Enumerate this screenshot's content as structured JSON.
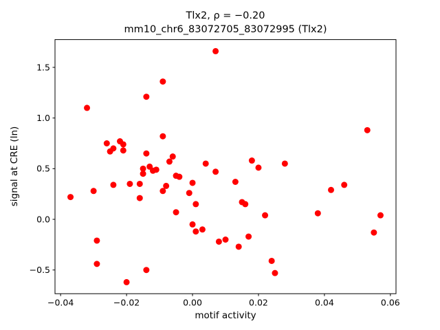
{
  "figure": {
    "background": "#ffffff"
  },
  "chart_data": {
    "type": "scatter",
    "title": "Tlx2, ρ = −0.20",
    "subtitle": "mm10_chr6_83072705_83072995 (Tlx2)",
    "xlabel": "motif activity",
    "ylabel": "signal at CRE (ln)",
    "xlim": [
      -0.0417,
      0.0617
    ],
    "ylim": [
      -0.734,
      1.774
    ],
    "xticks": [
      -0.04,
      -0.02,
      0.0,
      0.02,
      0.04,
      0.06
    ],
    "xtick_labels": [
      "−0.04",
      "−0.02",
      "0.00",
      "0.02",
      "0.04",
      "0.06"
    ],
    "yticks": [
      -0.5,
      0.0,
      0.5,
      1.0,
      1.5
    ],
    "ytick_labels": [
      "−0.5",
      "0.0",
      "0.5",
      "1.0",
      "1.5"
    ],
    "grid": false,
    "legend": "none",
    "marker_color": "#ff0000",
    "marker_radius": 4.5,
    "points": [
      [
        -0.037,
        0.22
      ],
      [
        -0.032,
        1.1
      ],
      [
        -0.03,
        0.28
      ],
      [
        -0.029,
        -0.21
      ],
      [
        -0.029,
        -0.44
      ],
      [
        -0.026,
        0.75
      ],
      [
        -0.025,
        0.67
      ],
      [
        -0.024,
        0.7
      ],
      [
        -0.024,
        0.34
      ],
      [
        -0.022,
        0.77
      ],
      [
        -0.021,
        0.74
      ],
      [
        -0.021,
        0.68
      ],
      [
        -0.02,
        -0.62
      ],
      [
        -0.019,
        0.35
      ],
      [
        -0.016,
        0.21
      ],
      [
        -0.016,
        0.35
      ],
      [
        -0.015,
        0.5
      ],
      [
        -0.015,
        0.45
      ],
      [
        -0.014,
        1.21
      ],
      [
        -0.014,
        0.65
      ],
      [
        -0.014,
        -0.5
      ],
      [
        -0.013,
        0.52
      ],
      [
        -0.012,
        0.48
      ],
      [
        -0.011,
        0.49
      ],
      [
        -0.009,
        1.36
      ],
      [
        -0.009,
        0.82
      ],
      [
        -0.009,
        0.28
      ],
      [
        -0.008,
        0.33
      ],
      [
        -0.007,
        0.57
      ],
      [
        -0.006,
        0.62
      ],
      [
        -0.005,
        0.43
      ],
      [
        -0.005,
        0.07
      ],
      [
        -0.004,
        0.42
      ],
      [
        -0.001,
        0.26
      ],
      [
        0.0,
        0.36
      ],
      [
        0.0,
        -0.05
      ],
      [
        0.001,
        0.15
      ],
      [
        0.001,
        -0.12
      ],
      [
        0.003,
        -0.1
      ],
      [
        0.004,
        0.55
      ],
      [
        0.007,
        1.66
      ],
      [
        0.007,
        0.47
      ],
      [
        0.008,
        -0.22
      ],
      [
        0.01,
        -0.2
      ],
      [
        0.013,
        0.37
      ],
      [
        0.014,
        -0.27
      ],
      [
        0.015,
        0.17
      ],
      [
        0.016,
        0.15
      ],
      [
        0.017,
        -0.17
      ],
      [
        0.018,
        0.58
      ],
      [
        0.02,
        0.51
      ],
      [
        0.022,
        0.04
      ],
      [
        0.024,
        -0.41
      ],
      [
        0.025,
        -0.53
      ],
      [
        0.028,
        0.55
      ],
      [
        0.038,
        0.06
      ],
      [
        0.042,
        0.29
      ],
      [
        0.046,
        0.34
      ],
      [
        0.053,
        0.88
      ],
      [
        0.055,
        -0.13
      ],
      [
        0.057,
        0.04
      ]
    ]
  }
}
